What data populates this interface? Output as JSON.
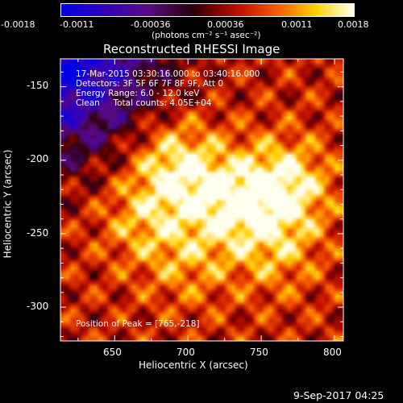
{
  "chart_data": {
    "type": "heatmap",
    "title": "Reconstructed RHESSI Image",
    "xlabel": "Heliocentric X (arcsec)",
    "ylabel": "Heliocentric Y (arcsec)",
    "xlim": [
      613,
      806
    ],
    "ylim": [
      -323,
      -131
    ],
    "x_ticks": [
      650,
      700,
      750,
      800
    ],
    "y_ticks": [
      -300,
      -250,
      -200,
      -150
    ],
    "colorbar": {
      "ticks": [
        "-0.0018",
        "-0.0011",
        "-0.00036",
        "0.00036",
        "0.0011",
        "0.0018"
      ],
      "range": [
        -0.0018,
        0.0018
      ],
      "label": "(photons cm⁻² s⁻¹ asec⁻²)"
    },
    "annotations": [
      "17-Mar-2015 03:30:16.000 to 03:40:16.000",
      "Detectors: 3F 5F 6F 7F 8F 9F, Att 0",
      "Energy Range: 6.0 - 12.0 keV",
      "Clean     Total counts: 4.05E+04"
    ],
    "peak_label": "Position of Peak = [765,-218]",
    "sources": [
      {
        "x": 692,
        "y": -203,
        "value": 0.0017
      },
      {
        "x": 765,
        "y": -218,
        "value": 0.0018
      },
      {
        "x": 728,
        "y": -230,
        "value": 0.0015
      },
      {
        "x": 670,
        "y": -240,
        "value": 0.0012
      },
      {
        "x": 760,
        "y": -262,
        "value": 0.0011
      },
      {
        "x": 700,
        "y": -270,
        "value": 0.001
      }
    ]
  },
  "footer": {
    "date": "9-Sep-2017 04:25"
  }
}
